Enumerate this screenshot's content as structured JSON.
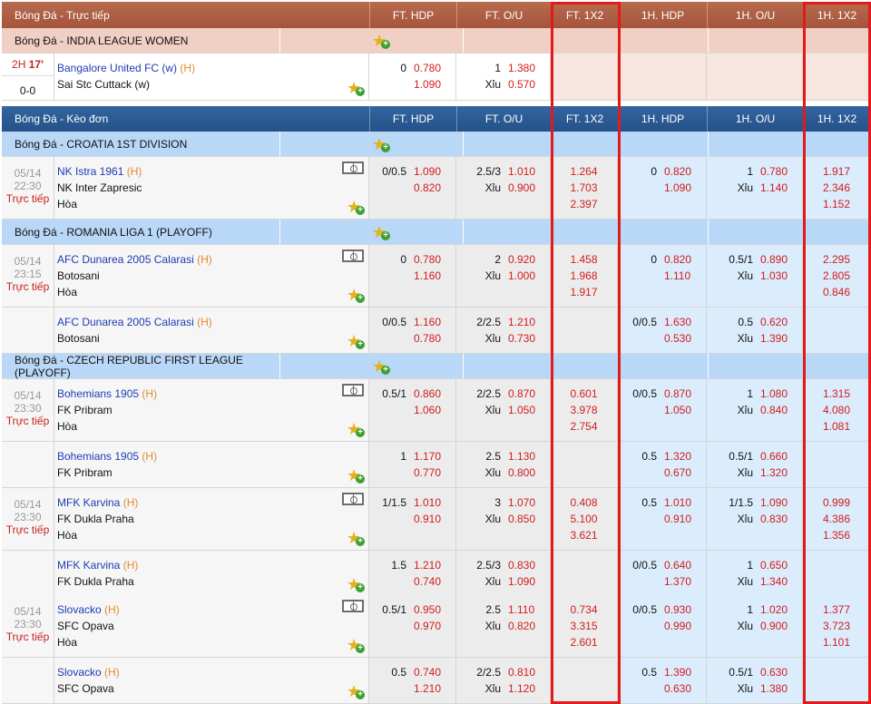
{
  "live_header": {
    "title": "Bóng Đá - Trực tiếp",
    "cols": [
      "FT. HDP",
      "FT. O/U",
      "FT. 1X2",
      "1H. HDP",
      "1H. O/U",
      "1H. 1X2"
    ]
  },
  "single_header": {
    "title": "Bóng Đá - Kèo đơn",
    "cols": [
      "FT. HDP",
      "FT. O/U",
      "FT. 1X2",
      "1H. HDP",
      "1H. O/U",
      "1H. 1X2"
    ]
  },
  "live_league": "Bóng Đá - INDIA LEAGUE WOMEN",
  "live_match": {
    "period": "2H",
    "minute": "17'",
    "score": "0-0",
    "home": "Bangalore United FC (w)",
    "home_tag": "(H)",
    "away": "Sai Stc Cuttack (w)",
    "hdp_line": "0",
    "hdp_home": "0.780",
    "hdp_away": "1.090",
    "ou_line": "1",
    "ou_over": "1.380",
    "ou_under_label": "Xỉu",
    "ou_under": "0.570"
  },
  "leagues": [
    {
      "name": "Bóng Đá - CROATIA 1ST DIVISION"
    },
    {
      "name": "Bóng Đá - ROMANIA LIGA 1 (PLAYOFF)"
    },
    {
      "name": "Bóng Đá - CZECH REPUBLIC FIRST LEAGUE (PLAYOFF)"
    }
  ],
  "matches": [
    {
      "date": "05/14",
      "time": "22:30",
      "live": "Trực tiếp",
      "home": "NK Istra 1961",
      "tag": "(H)",
      "away": "NK Inter Zapresic",
      "draw": "Hòa",
      "fhl": "0/0.5",
      "fh1": "1.090",
      "fh2": "0.820",
      "fol": "2.5/3",
      "fo1": "1.010",
      "ful": "Xỉu",
      "fo2": "0.900",
      "f1": "1.264",
      "f2": "1.703",
      "fx": "2.397",
      "hhl": "0",
      "hh1": "0.820",
      "hh2": "1.090",
      "hol": "1",
      "ho1": "0.780",
      "hul": "Xỉu",
      "ho2": "1.140",
      "h1": "1.917",
      "h2": "2.346",
      "hx": "1.152"
    },
    {
      "date": "05/14",
      "time": "23:15",
      "live": "Trực tiếp",
      "home": "AFC Dunarea 2005 Calarasi",
      "tag": "(H)",
      "away": "Botosani",
      "draw": "Hòa",
      "fhl": "0",
      "fh1": "0.780",
      "fh2": "1.160",
      "fol": "2",
      "fo1": "0.920",
      "ful": "Xỉu",
      "fo2": "1.000",
      "f1": "1.458",
      "f2": "1.968",
      "fx": "1.917",
      "hhl": "0",
      "hh1": "0.820",
      "hh2": "1.110",
      "hol": "0.5/1",
      "ho1": "0.890",
      "hul": "Xỉu",
      "ho2": "1.030",
      "h1": "2.295",
      "h2": "2.805",
      "hx": "0.846"
    },
    {
      "home": "AFC Dunarea 2005 Calarasi",
      "tag": "(H)",
      "away": "Botosani",
      "fhl": "0/0.5",
      "fh1": "1.160",
      "fh2": "0.780",
      "fol": "2/2.5",
      "fo1": "1.210",
      "ful": "Xỉu",
      "fo2": "0.730",
      "hhl": "0/0.5",
      "hh1": "1.630",
      "hh2": "0.530",
      "hol": "0.5",
      "ho1": "0.620",
      "hul": "Xỉu",
      "ho2": "1.390"
    },
    {
      "date": "05/14",
      "time": "23:30",
      "live": "Trực tiếp",
      "home": "Bohemians 1905",
      "tag": "(H)",
      "away": "FK Pribram",
      "draw": "Hòa",
      "fhl": "0.5/1",
      "fh1": "0.860",
      "fh2": "1.060",
      "fol": "2/2.5",
      "fo1": "0.870",
      "ful": "Xỉu",
      "fo2": "1.050",
      "f1": "0.601",
      "f2": "3.978",
      "fx": "2.754",
      "hhl": "0/0.5",
      "hh1": "0.870",
      "hh2": "1.050",
      "hol": "1",
      "ho1": "1.080",
      "hul": "Xỉu",
      "ho2": "0.840",
      "h1": "1.315",
      "h2": "4.080",
      "hx": "1.081"
    },
    {
      "home": "Bohemians 1905",
      "tag": "(H)",
      "away": "FK Pribram",
      "fhl": "1",
      "fh1": "1.170",
      "fh2": "0.770",
      "fol": "2.5",
      "fo1": "1.130",
      "ful": "Xỉu",
      "fo2": "0.800",
      "hhl": "0.5",
      "hh1": "1.320",
      "hh2": "0.670",
      "hol": "0.5/1",
      "ho1": "0.660",
      "hul": "Xỉu",
      "ho2": "1.320"
    },
    {
      "date": "05/14",
      "time": "23:30",
      "live": "Trực tiếp",
      "home": "MFK Karvina",
      "tag": "(H)",
      "away": "FK Dukla Praha",
      "draw": "Hòa",
      "fhl": "1/1.5",
      "fh1": "1.010",
      "fh2": "0.910",
      "fol": "3",
      "fo1": "1.070",
      "ful": "Xỉu",
      "fo2": "0.850",
      "f1": "0.408",
      "f2": "5.100",
      "fx": "3.621",
      "hhl": "0.5",
      "hh1": "1.010",
      "hh2": "0.910",
      "hol": "1/1.5",
      "ho1": "1.090",
      "hul": "Xỉu",
      "ho2": "0.830",
      "h1": "0.999",
      "h2": "4.386",
      "hx": "1.356"
    },
    {
      "home": "MFK Karvina",
      "tag": "(H)",
      "away": "FK Dukla Praha",
      "fhl": "1.5",
      "fh1": "1.210",
      "fh2": "0.740",
      "fol": "2.5/3",
      "fo1": "0.830",
      "ful": "Xỉu",
      "fo2": "1.090",
      "hhl": "0/0.5",
      "hh1": "0.640",
      "hh2": "1.370",
      "hol": "1",
      "ho1": "0.650",
      "hul": "Xỉu",
      "ho2": "1.340"
    },
    {
      "date": "05/14",
      "time": "23:30",
      "live": "Trực tiếp",
      "home": "Slovacko",
      "tag": "(H)",
      "away": "SFC Opava",
      "draw": "Hòa",
      "fhl": "0.5/1",
      "fh1": "0.950",
      "fh2": "0.970",
      "fol": "2.5",
      "fo1": "1.110",
      "ful": "Xỉu",
      "fo2": "0.820",
      "f1": "0.734",
      "f2": "3.315",
      "fx": "2.601",
      "hhl": "0/0.5",
      "hh1": "0.930",
      "hh2": "0.990",
      "hol": "1",
      "ho1": "1.020",
      "hul": "Xỉu",
      "ho2": "0.900",
      "h1": "1.377",
      "h2": "3.723",
      "hx": "1.101"
    },
    {
      "home": "Slovacko",
      "tag": "(H)",
      "away": "SFC Opava",
      "fhl": "0.5",
      "fh1": "0.740",
      "fh2": "1.210",
      "fol": "2/2.5",
      "fo1": "0.810",
      "ful": "Xỉu",
      "fo2": "1.120",
      "hhl": "0.5",
      "hh1": "1.390",
      "hh2": "0.630",
      "hol": "0.5/1",
      "ho1": "0.630",
      "hul": "Xỉu",
      "ho2": "1.380"
    }
  ]
}
